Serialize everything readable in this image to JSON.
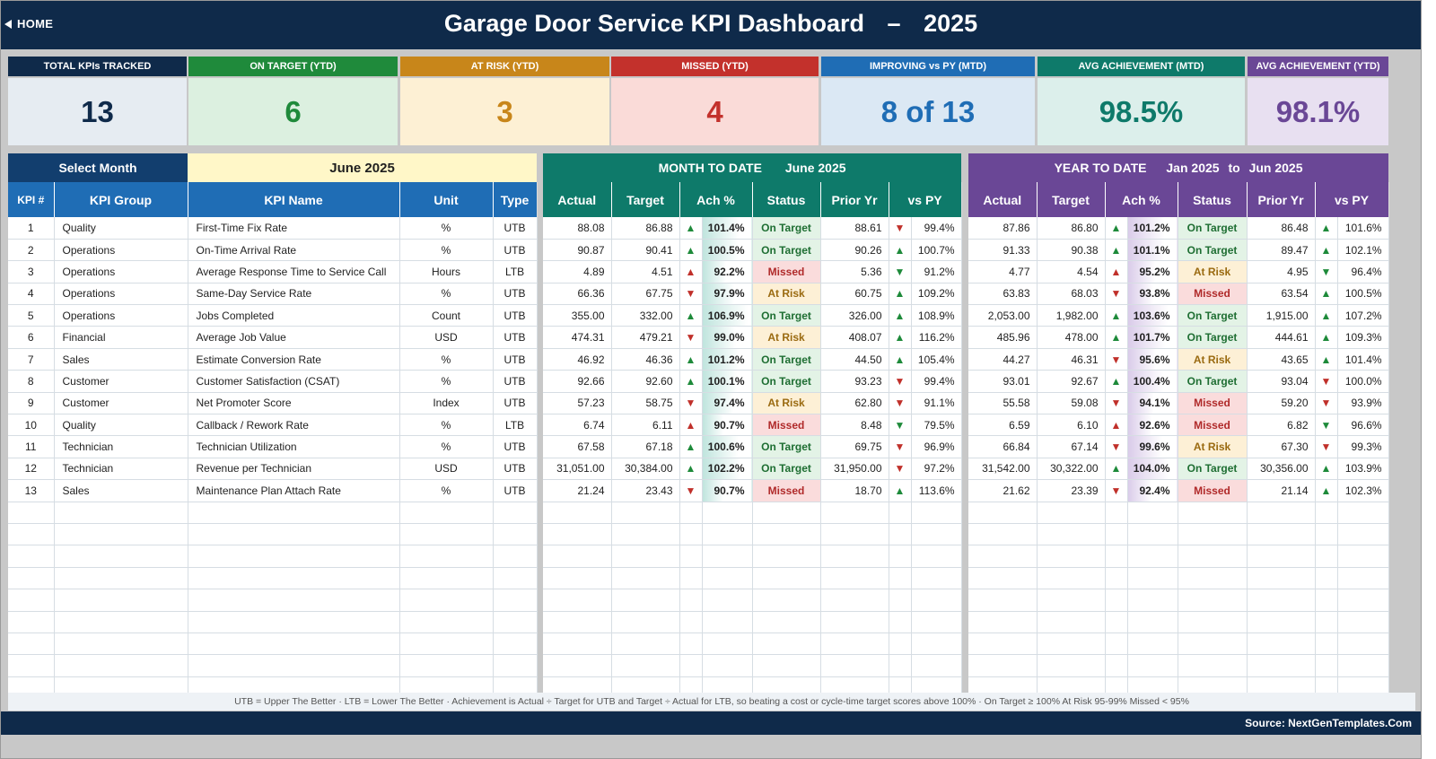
{
  "header": {
    "home_label": "HOME",
    "title": "Garage Door Service KPI Dashboard",
    "dash": "–",
    "year": "2025"
  },
  "cards": [
    {
      "label": "TOTAL KPIs TRACKED",
      "value": "13",
      "head_color": "#0f2a4a",
      "bg": "#e6ecf2",
      "fg": "#0f2a4a"
    },
    {
      "label": "ON TARGET (YTD)",
      "value": "6",
      "head_color": "#1f8a3b",
      "bg": "#dcf0e0",
      "fg": "#1f8a3b"
    },
    {
      "label": "AT RISK (YTD)",
      "value": "3",
      "head_color": "#c8861a",
      "bg": "#fdf0d4",
      "fg": "#c8861a"
    },
    {
      "label": "MISSED (YTD)",
      "value": "4",
      "head_color": "#c3312c",
      "bg": "#fadbd8",
      "fg": "#c3312c"
    },
    {
      "label": "IMPROVING vs PY (MTD)",
      "value": "8 of 13",
      "head_color": "#1f6db5",
      "bg": "#dbe8f4",
      "fg": "#1f6db5"
    },
    {
      "label": "AVG ACHIEVEMENT (MTD)",
      "value": "98.5%",
      "head_color": "#0e7a6a",
      "bg": "#dcefeb",
      "fg": "#0e7a6a"
    },
    {
      "label": "AVG ACHIEVEMENT (YTD)",
      "value": "98.1%",
      "head_color": "#6a4796",
      "bg": "#e8e0f1",
      "fg": "#6a4796"
    }
  ],
  "left": {
    "select_label": "Select Month",
    "month": "June 2025",
    "columns": [
      "KPI #",
      "KPI Group",
      "KPI Name",
      "Unit",
      "Type"
    ]
  },
  "mtd": {
    "title": "MONTH TO DATE",
    "period": "June 2025",
    "columns": [
      "Actual",
      "Target",
      "Ach %",
      "Status",
      "Prior Yr",
      "vs PY"
    ]
  },
  "ytd": {
    "title": "YEAR TO DATE",
    "period_from": "Jan 2025",
    "to": "to",
    "period_to": "Jun 2025",
    "columns": [
      "Actual",
      "Target",
      "Ach %",
      "Status",
      "Prior Yr",
      "vs PY"
    ]
  },
  "rows": [
    {
      "num": "1",
      "group": "Quality",
      "name": "First-Time Fix Rate",
      "unit": "%",
      "type": "UTB",
      "m_actual": "88.08",
      "m_target": "86.88",
      "m_dir": "up",
      "m_ach": "101.4%",
      "m_status": "On Target",
      "m_prior": "88.61",
      "m_pydir": "dn",
      "m_vspy": "99.4%",
      "y_actual": "87.86",
      "y_target": "86.80",
      "y_dir": "up",
      "y_ach": "101.2%",
      "y_status": "On Target",
      "y_prior": "86.48",
      "y_pydir": "up",
      "y_vspy": "101.6%"
    },
    {
      "num": "2",
      "group": "Operations",
      "name": "On-Time Arrival Rate",
      "unit": "%",
      "type": "UTB",
      "m_actual": "90.87",
      "m_target": "90.41",
      "m_dir": "up",
      "m_ach": "100.5%",
      "m_status": "On Target",
      "m_prior": "90.26",
      "m_pydir": "up",
      "m_vspy": "100.7%",
      "y_actual": "91.33",
      "y_target": "90.38",
      "y_dir": "up",
      "y_ach": "101.1%",
      "y_status": "On Target",
      "y_prior": "89.47",
      "y_pydir": "up",
      "y_vspy": "102.1%"
    },
    {
      "num": "3",
      "group": "Operations",
      "name": "Average Response Time to Service Call",
      "unit": "Hours",
      "type": "LTB",
      "m_actual": "4.89",
      "m_target": "4.51",
      "m_dir": "dnup",
      "m_ach": "92.2%",
      "m_status": "Missed",
      "m_prior": "5.36",
      "m_pydir": "gdn",
      "m_vspy": "91.2%",
      "y_actual": "4.77",
      "y_target": "4.54",
      "y_dir": "dnup",
      "y_ach": "95.2%",
      "y_status": "At Risk",
      "y_prior": "4.95",
      "y_pydir": "gdn",
      "y_vspy": "96.4%"
    },
    {
      "num": "4",
      "group": "Operations",
      "name": "Same-Day Service Rate",
      "unit": "%",
      "type": "UTB",
      "m_actual": "66.36",
      "m_target": "67.75",
      "m_dir": "dn",
      "m_ach": "97.9%",
      "m_status": "At Risk",
      "m_prior": "60.75",
      "m_pydir": "up",
      "m_vspy": "109.2%",
      "y_actual": "63.83",
      "y_target": "68.03",
      "y_dir": "dn",
      "y_ach": "93.8%",
      "y_status": "Missed",
      "y_prior": "63.54",
      "y_pydir": "up",
      "y_vspy": "100.5%"
    },
    {
      "num": "5",
      "group": "Operations",
      "name": "Jobs Completed",
      "unit": "Count",
      "type": "UTB",
      "m_actual": "355.00",
      "m_target": "332.00",
      "m_dir": "up",
      "m_ach": "106.9%",
      "m_status": "On Target",
      "m_prior": "326.00",
      "m_pydir": "up",
      "m_vspy": "108.9%",
      "y_actual": "2,053.00",
      "y_target": "1,982.00",
      "y_dir": "up",
      "y_ach": "103.6%",
      "y_status": "On Target",
      "y_prior": "1,915.00",
      "y_pydir": "up",
      "y_vspy": "107.2%"
    },
    {
      "num": "6",
      "group": "Financial",
      "name": "Average Job Value",
      "unit": "USD",
      "type": "UTB",
      "m_actual": "474.31",
      "m_target": "479.21",
      "m_dir": "dn",
      "m_ach": "99.0%",
      "m_status": "At Risk",
      "m_prior": "408.07",
      "m_pydir": "up",
      "m_vspy": "116.2%",
      "y_actual": "485.96",
      "y_target": "478.00",
      "y_dir": "up",
      "y_ach": "101.7%",
      "y_status": "On Target",
      "y_prior": "444.61",
      "y_pydir": "up",
      "y_vspy": "109.3%"
    },
    {
      "num": "7",
      "group": "Sales",
      "name": "Estimate Conversion Rate",
      "unit": "%",
      "type": "UTB",
      "m_actual": "46.92",
      "m_target": "46.36",
      "m_dir": "up",
      "m_ach": "101.2%",
      "m_status": "On Target",
      "m_prior": "44.50",
      "m_pydir": "up",
      "m_vspy": "105.4%",
      "y_actual": "44.27",
      "y_target": "46.31",
      "y_dir": "dn",
      "y_ach": "95.6%",
      "y_status": "At Risk",
      "y_prior": "43.65",
      "y_pydir": "up",
      "y_vspy": "101.4%"
    },
    {
      "num": "8",
      "group": "Customer",
      "name": "Customer Satisfaction (CSAT)",
      "unit": "%",
      "type": "UTB",
      "m_actual": "92.66",
      "m_target": "92.60",
      "m_dir": "up",
      "m_ach": "100.1%",
      "m_status": "On Target",
      "m_prior": "93.23",
      "m_pydir": "dn",
      "m_vspy": "99.4%",
      "y_actual": "93.01",
      "y_target": "92.67",
      "y_dir": "up",
      "y_ach": "100.4%",
      "y_status": "On Target",
      "y_prior": "93.04",
      "y_pydir": "dn",
      "y_vspy": "100.0%"
    },
    {
      "num": "9",
      "group": "Customer",
      "name": "Net Promoter Score",
      "unit": "Index",
      "type": "UTB",
      "m_actual": "57.23",
      "m_target": "58.75",
      "m_dir": "dn",
      "m_ach": "97.4%",
      "m_status": "At Risk",
      "m_prior": "62.80",
      "m_pydir": "dn",
      "m_vspy": "91.1%",
      "y_actual": "55.58",
      "y_target": "59.08",
      "y_dir": "dn",
      "y_ach": "94.1%",
      "y_status": "Missed",
      "y_prior": "59.20",
      "y_pydir": "dn",
      "y_vspy": "93.9%"
    },
    {
      "num": "10",
      "group": "Quality",
      "name": "Callback / Rework Rate",
      "unit": "%",
      "type": "LTB",
      "m_actual": "6.74",
      "m_target": "6.11",
      "m_dir": "dnup",
      "m_ach": "90.7%",
      "m_status": "Missed",
      "m_prior": "8.48",
      "m_pydir": "gdn",
      "m_vspy": "79.5%",
      "y_actual": "6.59",
      "y_target": "6.10",
      "y_dir": "dnup",
      "y_ach": "92.6%",
      "y_status": "Missed",
      "y_prior": "6.82",
      "y_pydir": "gdn",
      "y_vspy": "96.6%"
    },
    {
      "num": "11",
      "group": "Technician",
      "name": "Technician Utilization",
      "unit": "%",
      "type": "UTB",
      "m_actual": "67.58",
      "m_target": "67.18",
      "m_dir": "up",
      "m_ach": "100.6%",
      "m_status": "On Target",
      "m_prior": "69.75",
      "m_pydir": "dn",
      "m_vspy": "96.9%",
      "y_actual": "66.84",
      "y_target": "67.14",
      "y_dir": "dn",
      "y_ach": "99.6%",
      "y_status": "At Risk",
      "y_prior": "67.30",
      "y_pydir": "dn",
      "y_vspy": "99.3%"
    },
    {
      "num": "12",
      "group": "Technician",
      "name": "Revenue per Technician",
      "unit": "USD",
      "type": "UTB",
      "m_actual": "31,051.00",
      "m_target": "30,384.00",
      "m_dir": "up",
      "m_ach": "102.2%",
      "m_status": "On Target",
      "m_prior": "31,950.00",
      "m_pydir": "dn",
      "m_vspy": "97.2%",
      "y_actual": "31,542.00",
      "y_target": "30,322.00",
      "y_dir": "up",
      "y_ach": "104.0%",
      "y_status": "On Target",
      "y_prior": "30,356.00",
      "y_pydir": "up",
      "y_vspy": "103.9%"
    },
    {
      "num": "13",
      "group": "Sales",
      "name": "Maintenance Plan Attach Rate",
      "unit": "%",
      "type": "UTB",
      "m_actual": "21.24",
      "m_target": "23.43",
      "m_dir": "dn",
      "m_ach": "90.7%",
      "m_status": "Missed",
      "m_prior": "18.70",
      "m_pydir": "up",
      "m_vspy": "113.6%",
      "y_actual": "21.62",
      "y_target": "23.39",
      "y_dir": "dn",
      "y_ach": "92.4%",
      "y_status": "Missed",
      "y_prior": "21.14",
      "y_pydir": "up",
      "y_vspy": "102.3%"
    }
  ],
  "empty_rows": 9,
  "legend": "UTB = Upper The Better   ·   LTB = Lower The Better   ·   Achievement is Actual ÷ Target for UTB and Target ÷ Actual for LTB, so beating a cost or cycle-time target scores above 100%   ·   On Target ≥ 100%    At Risk 95-99%    Missed < 95%",
  "footer": "Source: NextGenTemplates.Com",
  "colors": {
    "navy": "#0f2a4a",
    "blue": "#1f6db5",
    "teal": "#0e7a6a",
    "purple": "#6a4796",
    "select_bg": "#fff7c8"
  }
}
